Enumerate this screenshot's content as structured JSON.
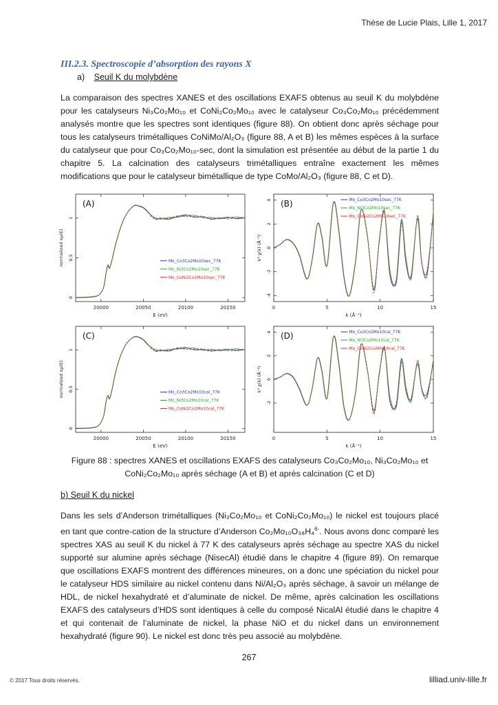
{
  "header": {
    "right": "Thèse de Lucie Plais, Lille 1, 2017"
  },
  "section_title": "III.2.3. Spectroscopie d’absorption des rayons X",
  "subheading_a": {
    "label": "a)",
    "text": "Seuil K du molybdène"
  },
  "paragraph1": [
    "La comparaison des spectres XANES et des oscillations EXAFS obtenus au seuil K du molybdène pour les catalyseurs ",
    "Ni₃Co₂Mo₁₀",
    " et ",
    "CoNi₂Co₂Mo₁₀",
    " avec le catalyseur ",
    "Co₃Co₂Mo₁₀",
    " précédemment analysés montre que les spectres sont identiques (figure 88). On obtient donc après séchage pour tous les catalyseurs trimétalliques CoNiMo/Al₂O₃ (figure 88, A et B) les mêmes espèces à la surface du catalyseur que pour Co₃Co₂Mo₁₀-sec, dont la simulation est présentée au début de la partie 1 du chapitre 5. La calcination des catalyseurs trimétalliques entraîne exactement les mêmes modifications que pour le catalyseur bimétallique de type CoMo/Al₂O₃ (figure 88, C et D)."
  ],
  "figure": {
    "caption_line1": "Figure 88 : spectres XANES et oscillations EXAFS des catalyseurs Co₃Co₂Mo₁₀, Ni₃Co₂Mo₁₀ et",
    "caption_line2": "CoNi₂Co₂Mo₁₀ après séchage (A et B) et après calcination (C et D)"
  },
  "chart_data": [
    {
      "type": "line",
      "panel_label": "(A)",
      "xlabel": "E (eV)",
      "ylabel": "normalized xμ(E)",
      "xlim": [
        19970,
        20170
      ],
      "ylim": [
        -0.05,
        1.3
      ],
      "x_ticks": [
        20000,
        20050,
        20100,
        20150
      ],
      "y_ticks": [
        0,
        0.5,
        1
      ],
      "legend": [
        "Mo_Co3Co2Mo10sec_77K",
        "Mo_Ni3Co2Mo10sec_77K",
        "Mo_CoNi2Co2Mo10sec_77K"
      ],
      "series_colors": [
        "#2233dd",
        "#22aa22",
        "#ee2222"
      ],
      "x": [
        19970,
        19990,
        19998,
        20003,
        20006,
        20008,
        20010,
        20013,
        20016,
        20020,
        20025,
        20030,
        20035,
        20040,
        20045,
        20050,
        20055,
        20060,
        20065,
        20070,
        20080,
        20090,
        20100,
        20110,
        20120,
        20130,
        20140,
        20150,
        20160,
        20170
      ],
      "y": [
        0,
        0.01,
        0.04,
        0.13,
        0.32,
        0.41,
        0.37,
        0.48,
        0.62,
        0.78,
        0.94,
        1.05,
        1.12,
        1.16,
        1.15,
        1.13,
        1.08,
        1.02,
        0.99,
        0.99,
        1.0,
        1.02,
        1.03,
        1.02,
        1.01,
        1.0,
        1.0,
        1.0,
        1.0,
        1.0
      ]
    },
    {
      "type": "line",
      "panel_label": "(B)",
      "xlabel": "k (Å⁻¹)",
      "ylabel": "k³ χ(k) (Å⁻³)",
      "xlim": [
        0,
        15
      ],
      "ylim": [
        -4.5,
        4.5
      ],
      "x_ticks": [
        0,
        5,
        10,
        15
      ],
      "y_ticks": [
        -4,
        -2,
        0,
        2,
        4
      ],
      "legend": [
        "Mo_Co3Co2Mo10sec_77K",
        "Mo_Ni3Co2Mo10sec_77K",
        "Mo_CoNi2Co2Mo10sec_77K"
      ],
      "series_colors": [
        "#2233dd",
        "#22aa22",
        "#ee2222"
      ],
      "x": [
        0,
        0.6,
        1.2,
        1.8,
        2.4,
        3.1,
        3.6,
        4.1,
        4.5,
        5.0,
        5.6,
        6.1,
        6.6,
        7.1,
        7.7,
        8.2,
        8.8,
        9.4,
        9.9,
        10.4,
        10.9,
        11.5,
        12.0,
        12.4,
        12.9,
        13.5,
        13.9,
        14.4,
        15.0
      ],
      "y": [
        0,
        0.3,
        0.7,
        0.4,
        -0.6,
        -2.6,
        -1.0,
        2.0,
        1.0,
        -1.5,
        3.8,
        1.5,
        -2.5,
        -4.0,
        -1.0,
        3.2,
        1.0,
        -3.6,
        0.5,
        3.0,
        -2.0,
        -2.8,
        2.2,
        -1.0,
        -2.5,
        2.6,
        -1.2,
        -2.2,
        3.0
      ]
    },
    {
      "type": "line",
      "panel_label": "(C)",
      "xlabel": "E (eV)",
      "ylabel": "normalized xμ(E)",
      "xlim": [
        19970,
        20170
      ],
      "ylim": [
        -0.05,
        1.3
      ],
      "x_ticks": [
        20000,
        20050,
        20100,
        20150
      ],
      "y_ticks": [
        0,
        0.5,
        1
      ],
      "legend": [
        "Mo_Co3Co2Mo10cal_77K",
        "Mo_Ni3Co2Mo10cal_77K",
        "Mo_CoNi2Co2Mo10cal_77K"
      ],
      "series_colors": [
        "#2233dd",
        "#22aa22",
        "#ee2222"
      ],
      "x": [
        19970,
        19990,
        19998,
        20003,
        20006,
        20008,
        20010,
        20013,
        20016,
        20020,
        20025,
        20030,
        20035,
        20040,
        20045,
        20050,
        20055,
        20060,
        20065,
        20070,
        20080,
        20090,
        20100,
        20110,
        20120,
        20130,
        20140,
        20150,
        20160,
        20170
      ],
      "y": [
        0,
        0.01,
        0.05,
        0.16,
        0.35,
        0.42,
        0.38,
        0.5,
        0.66,
        0.83,
        0.98,
        1.08,
        1.14,
        1.17,
        1.16,
        1.13,
        1.07,
        1.02,
        0.99,
        0.99,
        1.0,
        1.02,
        1.02,
        1.01,
        1.0,
        1.0,
        1.0,
        1.0,
        1.0,
        1.0
      ]
    },
    {
      "type": "line",
      "panel_label": "(D)",
      "xlabel": "k (Å⁻¹)",
      "ylabel": "k³ χ(k) (Å⁻³)",
      "xlim": [
        0,
        15
      ],
      "ylim": [
        -4.5,
        4.5
      ],
      "x_ticks": [
        0,
        5,
        10,
        15
      ],
      "y_ticks": [
        -2,
        0,
        2,
        4
      ],
      "legend": [
        "Mo_Co3Co2Mo10cal_77K",
        "Mo_Ni3Co2Mo10cal_77K",
        "Mo_CoNi2Co2Mo10cal_77K"
      ],
      "series_colors": [
        "#2233dd",
        "#22aa22",
        "#ee2222"
      ],
      "x": [
        0,
        0.6,
        1.2,
        1.8,
        2.4,
        3.1,
        3.6,
        4.1,
        4.5,
        5.0,
        5.6,
        6.1,
        6.6,
        7.1,
        7.7,
        8.2,
        8.8,
        9.4,
        9.9,
        10.4,
        10.9,
        11.5,
        12.0,
        12.4,
        12.9,
        13.5,
        13.9,
        14.4,
        15.0
      ],
      "y": [
        0,
        0.2,
        0.5,
        0.2,
        -0.8,
        -2.2,
        -0.8,
        1.8,
        0.8,
        -1.6,
        3.6,
        1.4,
        -2.4,
        -3.4,
        -1.0,
        3.0,
        0.8,
        -2.8,
        0.4,
        2.6,
        -1.6,
        -2.2,
        1.6,
        -0.8,
        -1.8,
        1.5,
        -0.8,
        -1.4,
        1.6
      ]
    }
  ],
  "subheading_b": "b) Seuil K du nickel",
  "paragraph2": [
    "Dans les sels d’Anderson trimétalliques (Ni₃Co₂Mo₁₀ et CoNi₂Co₂Mo₁₀) le nickel est toujours placé en tant que contre-cation de la structure d’Anderson Co₂Mo₁₀O₃₈H₄",
    "6-",
    ". Nous avons donc comparé les spectres XAS au seuil K du nickel à 77 K des catalyseurs après séchage au spectre XAS du nickel supporté sur alumine après séchage (NisecAl) étudié dans le chapitre 4 (figure 89). On remarque que oscillations EXAFS montrent des différences mineures, on a donc une spéciation du nickel pour le catalyseur HDS similaire au nickel contenu dans Ni/Al₂O₃ après séchage, à savoir un mélange de HDL, de nickel hexahydraté et d’aluminate de nickel.  De même, après calcination les oscillations EXAFS des catalyseurs d’HDS sont identiques à celle du composé NicalAl étudié dans le chapitre 4 et qui contenait de l’aluminate de nickel, la phase NiO et du nickel dans un environnement hexahydraté (figure 90). Le nickel est donc très peu associé au molybdène."
  ],
  "page_number": "267",
  "footer": {
    "left": "© 2017 Tous droits réservés.",
    "right": "lilliad.univ-lille.fr"
  }
}
